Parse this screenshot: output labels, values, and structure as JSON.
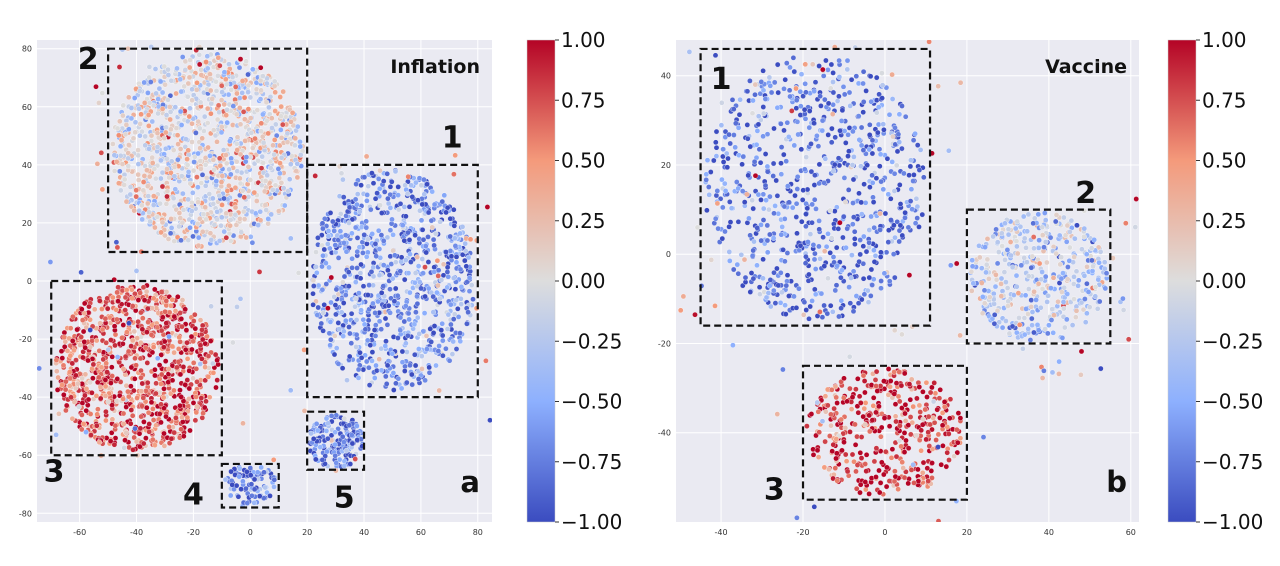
{
  "chart_data": [
    {
      "type": "scatter",
      "title": "Inflation",
      "panel_label": "a",
      "xlim": [
        -75,
        85
      ],
      "ylim": [
        -83,
        83
      ],
      "xticks": [
        -60,
        -40,
        -20,
        0,
        20,
        40,
        60,
        80
      ],
      "yticks": [
        -80,
        -60,
        -40,
        -20,
        0,
        20,
        40,
        60,
        80
      ],
      "grid": true,
      "color_scale": {
        "min": -1.0,
        "max": 1.0,
        "colormap": "coolwarm",
        "ticks": [
          "1.00",
          "0.75",
          "0.50",
          "0.25",
          "0.00",
          "−0.25",
          "−0.50",
          "−0.75",
          "−1.00"
        ]
      },
      "clusters": [
        {
          "label": "1",
          "box": {
            "x0": 20,
            "x1": 80,
            "y0": -40,
            "y1": 40
          },
          "label_pos": {
            "x": 71,
            "y": 46
          },
          "n_points": 900,
          "mean_sentiment": -0.7
        },
        {
          "label": "2",
          "box": {
            "x0": -50,
            "x1": 20,
            "y0": 10,
            "y1": 80
          },
          "label_pos": {
            "x": -57,
            "y": 73
          },
          "n_points": 1200,
          "mean_sentiment": 0.0
        },
        {
          "label": "3",
          "box": {
            "x0": -70,
            "x1": -10,
            "y0": -60,
            "y1": 0
          },
          "label_pos": {
            "x": -69,
            "y": -69
          },
          "n_points": 1000,
          "mean_sentiment": 0.75
        },
        {
          "label": "4",
          "box": {
            "x0": -10,
            "x1": 10,
            "y0": -78,
            "y1": -63
          },
          "label_pos": {
            "x": -20,
            "y": -77
          },
          "n_points": 90,
          "mean_sentiment": -0.75
        },
        {
          "label": "5",
          "box": {
            "x0": 20,
            "x1": 40,
            "y0": -65,
            "y1": -45
          },
          "label_pos": {
            "x": 33,
            "y": -78
          },
          "n_points": 170,
          "mean_sentiment": -0.8
        }
      ]
    },
    {
      "type": "scatter",
      "title": "Vaccine",
      "panel_label": "b",
      "xlim": [
        -51,
        62
      ],
      "ylim": [
        -60,
        48
      ],
      "xticks": [
        -40,
        -20,
        0,
        20,
        40,
        60
      ],
      "yticks": [
        -40,
        -20,
        0,
        20,
        40
      ],
      "grid": true,
      "color_scale": {
        "min": -1.0,
        "max": 1.0,
        "colormap": "coolwarm",
        "ticks": [
          "1.00",
          "0.75",
          "0.50",
          "0.25",
          "0.00",
          "−0.25",
          "−0.50",
          "−0.75",
          "−1.00"
        ]
      },
      "clusters": [
        {
          "label": "1",
          "box": {
            "x0": -45,
            "x1": 11,
            "y0": -16,
            "y1": 46
          },
          "label_pos": {
            "x": -40,
            "y": 37
          },
          "n_points": 800,
          "mean_sentiment": -0.8
        },
        {
          "label": "2",
          "box": {
            "x0": 20,
            "x1": 55,
            "y0": -20,
            "y1": 10
          },
          "label_pos": {
            "x": 49,
            "y": 11.5
          },
          "n_points": 420,
          "mean_sentiment": -0.3
        },
        {
          "label": "3",
          "box": {
            "x0": -20,
            "x1": 20,
            "y0": -55,
            "y1": -25
          },
          "label_pos": {
            "x": -27,
            "y": -55
          },
          "n_points": 420,
          "mean_sentiment": 0.85
        }
      ]
    }
  ]
}
